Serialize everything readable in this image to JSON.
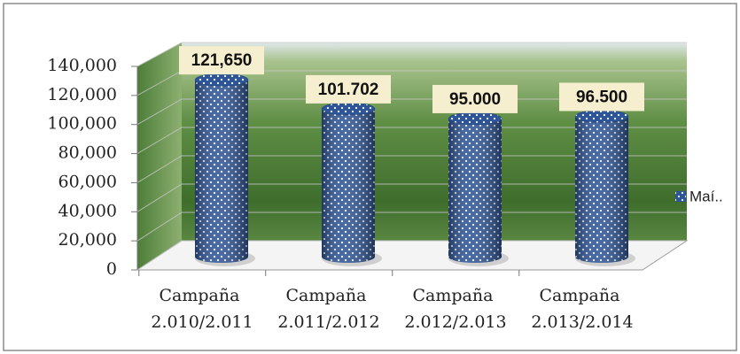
{
  "chart_data": {
    "type": "bar",
    "categories": [
      "Campaña 2.010/2.011",
      "Campaña 2.011/2.012",
      "Campaña 2.012/2.013",
      "Campaña 2.013/2.014"
    ],
    "series": [
      {
        "name": "Maí..",
        "color": "#2e5597",
        "values": [
          121650,
          101702,
          95000,
          96500
        ],
        "value_labels": [
          "121,650",
          "101.702",
          "95.000",
          "96.500"
        ]
      }
    ],
    "ylim": [
      0,
      140000
    ],
    "yticks": [
      0,
      {
        "value": 20000,
        "label": "20,000"
      },
      {
        "value": 40000,
        "label": "40,000"
      },
      {
        "value": 60000,
        "label": "60,000"
      },
      {
        "value": 80000,
        "label": "80,000"
      },
      {
        "value": 100000,
        "label": "100,000"
      },
      {
        "value": 120000,
        "label": "120,000"
      },
      {
        "value": 140000,
        "label": "140,000"
      }
    ],
    "grid": true,
    "legend": "right"
  }
}
